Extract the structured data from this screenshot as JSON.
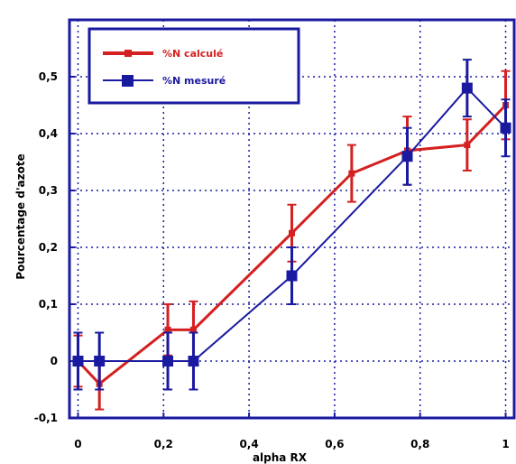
{
  "chart_data": {
    "type": "line",
    "xlabel": "alpha RX",
    "ylabel": "Pourcentage d'azote",
    "xlim": [
      -0.02,
      1.02
    ],
    "ylim": [
      -0.1,
      0.6
    ],
    "x_ticks": [
      "0",
      "0,2",
      "0,4",
      "0,6",
      "0,8",
      "1"
    ],
    "x_tick_values": [
      0,
      0.2,
      0.4,
      0.6,
      0.8,
      1.0
    ],
    "y_ticks": [
      "-0,1",
      "0",
      "0,1",
      "0,2",
      "0,3",
      "0,4",
      "0,5"
    ],
    "y_tick_values": [
      -0.1,
      0,
      0.1,
      0.2,
      0.3,
      0.4,
      0.5
    ],
    "grid": true,
    "legend_position": "top-left",
    "series": [
      {
        "name": "%N calculé",
        "color": "#d42020",
        "marker": "small-square",
        "x": [
          0,
          0.05,
          0.21,
          0.27,
          0.5,
          0.64,
          0.77,
          0.91,
          1.0
        ],
        "y": [
          0,
          -0.04,
          0.055,
          0.055,
          0.225,
          0.33,
          0.37,
          0.38,
          0.45
        ],
        "err": [
          0.045,
          0.045,
          0.045,
          0.05,
          0.05,
          0.05,
          0.06,
          0.045,
          0.06
        ]
      },
      {
        "name": "%N mesuré",
        "color": "#1a1aa0",
        "marker": "square",
        "x": [
          0,
          0.05,
          0.21,
          0.27,
          0.5,
          0.77,
          0.91,
          1.0
        ],
        "y": [
          0,
          0,
          0,
          0,
          0.15,
          0.36,
          0.48,
          0.41
        ],
        "err": [
          0.05,
          0.05,
          0.05,
          0.05,
          0.05,
          0.05,
          0.05,
          0.05
        ]
      }
    ]
  }
}
